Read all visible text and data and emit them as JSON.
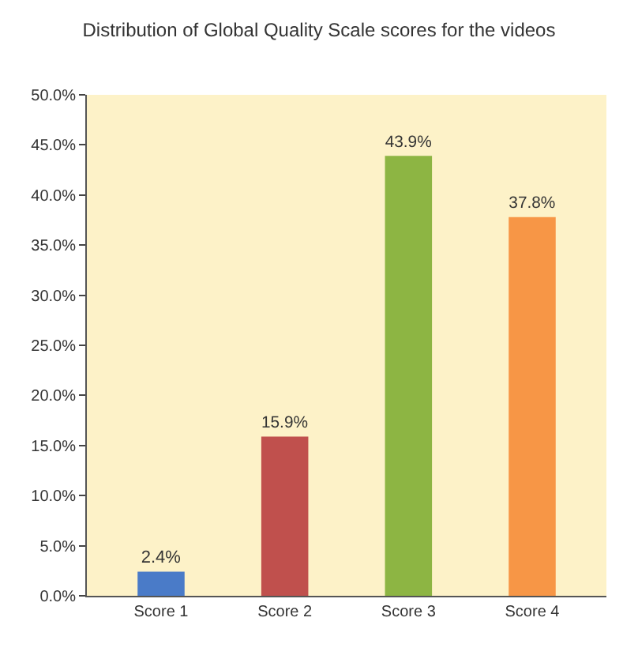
{
  "chart_data": {
    "type": "bar",
    "title": "Distribution of Global Quality Scale scores for the videos",
    "categories": [
      "Score 1",
      "Score 2",
      "Score 3",
      "Score 4"
    ],
    "values": [
      2.4,
      15.9,
      43.9,
      37.8
    ],
    "colors": [
      "#4a7bc8",
      "#c0504d",
      "#8db543",
      "#f79646"
    ],
    "value_labels": [
      "2.4%",
      "15.9%",
      "43.9%",
      "37.8%"
    ],
    "ylim": [
      0,
      50
    ],
    "yticks": [
      {
        "value": 0,
        "label": "0.0%"
      },
      {
        "value": 5,
        "label": "5.0%"
      },
      {
        "value": 10,
        "label": "10.0%"
      },
      {
        "value": 15,
        "label": "15.0%"
      },
      {
        "value": 20,
        "label": "20.0%"
      },
      {
        "value": 25,
        "label": "25.0%"
      },
      {
        "value": 30,
        "label": "30.0%"
      },
      {
        "value": 35,
        "label": "35.0%"
      },
      {
        "value": 40,
        "label": "40.0%"
      },
      {
        "value": 45,
        "label": "45.0%"
      },
      {
        "value": 50,
        "label": "50.0%"
      }
    ],
    "grid": false,
    "legend": false
  }
}
